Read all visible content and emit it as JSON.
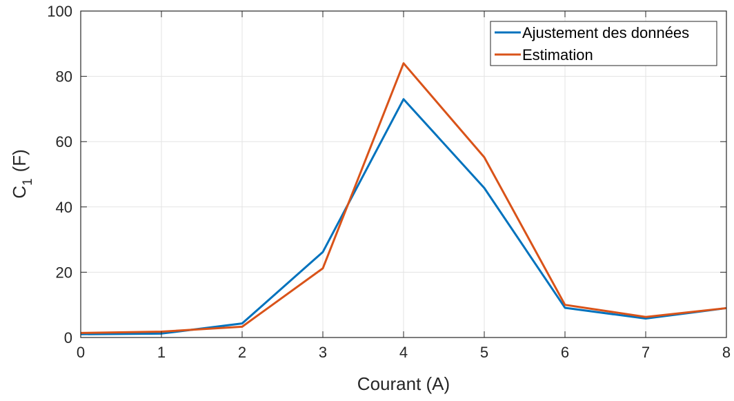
{
  "chart_data": {
    "type": "line",
    "x": [
      0,
      1,
      2,
      3,
      4,
      5,
      6,
      7,
      8
    ],
    "series": [
      {
        "name": "Ajustement des données",
        "color": "#0072BD",
        "values": [
          1.0,
          1.2,
          4.3,
          26.2,
          73.0,
          45.8,
          9.1,
          5.8,
          9.0
        ]
      },
      {
        "name": "Estimation",
        "color": "#D95319",
        "values": [
          1.4,
          1.8,
          3.3,
          21.2,
          84.0,
          55.2,
          10.0,
          6.3,
          9.0
        ]
      }
    ],
    "xlabel": "Courant (A)",
    "ylabel_main": "C",
    "ylabel_sub": "1",
    "ylabel_unit": "(F)",
    "xlim": [
      0,
      8
    ],
    "ylim": [
      0,
      100
    ],
    "xticks": [
      0,
      1,
      2,
      3,
      4,
      5,
      6,
      7,
      8
    ],
    "yticks": [
      0,
      20,
      40,
      60,
      80,
      100
    ],
    "grid": true,
    "legend_position": "top-right"
  }
}
